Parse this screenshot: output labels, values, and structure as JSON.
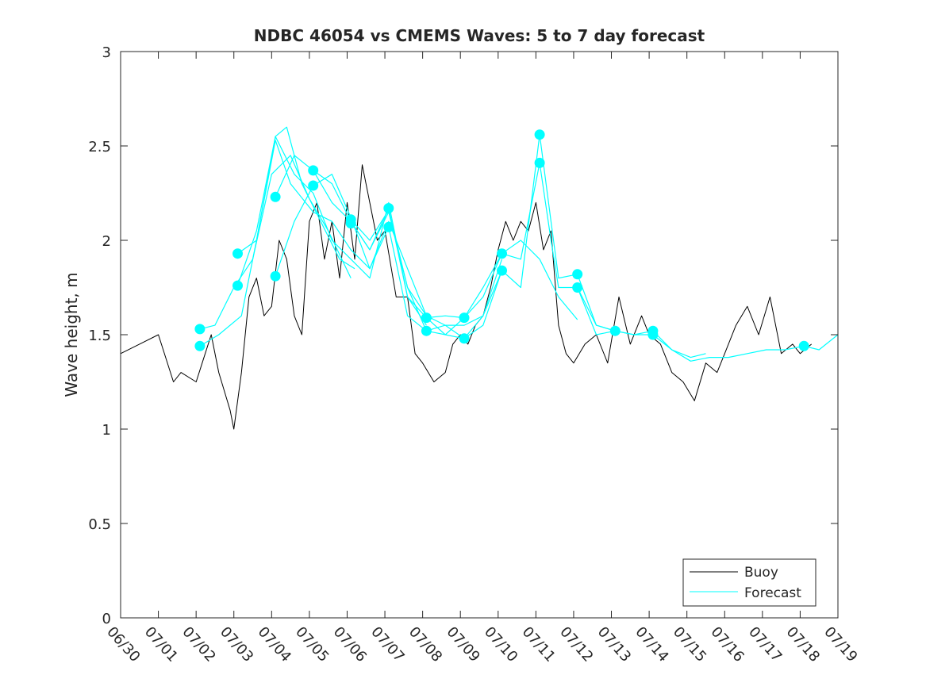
{
  "chart_data": {
    "type": "line",
    "title": "NDBC 46054 vs CMEMS Waves: 5 to 7 day forecast",
    "xlabel": "",
    "ylabel": "Wave height, m",
    "ylim": [
      0,
      3
    ],
    "yticks": [
      0,
      0.5,
      1,
      1.5,
      2,
      2.5,
      3
    ],
    "ytick_labels": [
      "0",
      "0.5",
      "1",
      "1.5",
      "2",
      "2.5",
      "3"
    ],
    "xlim": [
      "06/30",
      "07/19"
    ],
    "xticks": [
      "06/30",
      "07/01",
      "07/02",
      "07/03",
      "07/04",
      "07/05",
      "07/06",
      "07/07",
      "07/08",
      "07/09",
      "07/10",
      "07/11",
      "07/12",
      "07/13",
      "07/14",
      "07/15",
      "07/16",
      "07/17",
      "07/18",
      "07/19"
    ],
    "grid": false,
    "legend": {
      "position": "bottom-right",
      "entries": [
        "Buoy",
        "Forecast"
      ]
    },
    "colors": {
      "buoy": "#000000",
      "forecast": "#00ffff"
    },
    "series": [
      {
        "name": "Buoy",
        "x": [
          0,
          0.5,
          1,
          1.4,
          1.6,
          2,
          2.4,
          2.6,
          2.9,
          3,
          3.2,
          3.4,
          3.6,
          3.8,
          4,
          4.2,
          4.4,
          4.6,
          4.8,
          5,
          5.2,
          5.4,
          5.6,
          5.8,
          6,
          6.2,
          6.4,
          6.6,
          6.8,
          7,
          7.3,
          7.6,
          7.8,
          8,
          8.3,
          8.6,
          8.8,
          9,
          9.2,
          9.4,
          9.6,
          9.8,
          10,
          10.2,
          10.4,
          10.6,
          10.8,
          11,
          11.2,
          11.4,
          11.6,
          11.8,
          12,
          12.3,
          12.6,
          12.9,
          13.2,
          13.5,
          13.8,
          14,
          14.3,
          14.6,
          14.9,
          15.2,
          15.5,
          15.8,
          16,
          16.3,
          16.6,
          16.9,
          17.2,
          17.5,
          17.8,
          18,
          18.3
        ],
        "values": [
          1.4,
          1.45,
          1.5,
          1.25,
          1.3,
          1.25,
          1.5,
          1.3,
          1.1,
          1.0,
          1.3,
          1.7,
          1.8,
          1.6,
          1.65,
          2.0,
          1.9,
          1.6,
          1.5,
          2.1,
          2.2,
          1.9,
          2.1,
          1.8,
          2.2,
          1.9,
          2.4,
          2.2,
          2.0,
          2.05,
          1.7,
          1.7,
          1.4,
          1.35,
          1.25,
          1.3,
          1.45,
          1.5,
          1.45,
          1.55,
          1.6,
          1.75,
          1.95,
          2.1,
          2.0,
          2.1,
          2.05,
          2.2,
          1.95,
          2.05,
          1.55,
          1.4,
          1.35,
          1.45,
          1.5,
          1.35,
          1.7,
          1.45,
          1.6,
          1.5,
          1.45,
          1.3,
          1.25,
          1.15,
          1.35,
          1.3,
          1.4,
          1.55,
          1.65,
          1.5,
          1.7,
          1.4,
          1.45,
          1.4,
          1.45
        ]
      },
      {
        "name": "Forecast",
        "x": [
          2.1,
          2.5,
          3.0,
          3.5,
          4.0,
          4.5,
          5.0,
          5.5,
          6.1
        ],
        "values": [
          1.53,
          1.55,
          1.75,
          1.9,
          2.35,
          2.45,
          2.22,
          2.05,
          1.8
        ]
      },
      {
        "name": "Forecast",
        "x": [
          2.1,
          2.6,
          3.2,
          3.6,
          4.1,
          4.4,
          4.8,
          5.3,
          5.8,
          6.2
        ],
        "values": [
          1.44,
          1.5,
          1.6,
          2.0,
          2.55,
          2.6,
          2.3,
          2.1,
          1.9,
          1.85
        ]
      },
      {
        "name": "Forecast",
        "x": [
          3.1,
          3.6,
          4.1,
          4.5,
          5.1,
          5.6,
          6.1,
          6.6,
          7.1,
          7.5,
          8.1
        ],
        "values": [
          1.93,
          2.0,
          2.53,
          2.3,
          2.15,
          2.1,
          1.95,
          1.85,
          2.1,
          1.9,
          1.6
        ]
      },
      {
        "name": "Forecast",
        "x": [
          3.1,
          3.6,
          4.1,
          4.6,
          5.1,
          5.6,
          6.1,
          6.6,
          7.1,
          7.6,
          8.1
        ],
        "values": [
          1.76,
          2.05,
          2.55,
          2.35,
          2.25,
          2.0,
          1.9,
          1.8,
          2.2,
          1.7,
          1.55
        ]
      },
      {
        "name": "Forecast",
        "x": [
          4.1,
          4.6,
          5.1,
          5.6,
          6.1,
          6.6,
          7.1,
          7.6,
          8.1,
          8.6,
          9.1,
          9.6,
          10.1
        ],
        "values": [
          2.23,
          2.45,
          2.37,
          2.2,
          2.1,
          1.95,
          2.15,
          1.75,
          1.6,
          1.55,
          1.55,
          1.6,
          1.9
        ]
      },
      {
        "name": "Forecast",
        "x": [
          4.1,
          4.6,
          5.1,
          5.6,
          6.1,
          6.6,
          7.1,
          7.6,
          8.1,
          8.6,
          9.1,
          9.6,
          10.1
        ],
        "values": [
          1.81,
          2.1,
          2.29,
          2.35,
          2.12,
          1.85,
          2.07,
          1.6,
          1.52,
          1.5,
          1.48,
          1.55,
          1.84
        ]
      },
      {
        "name": "Forecast",
        "x": [
          5.1,
          5.6,
          6.1,
          6.6,
          7.1,
          7.6,
          8.1,
          8.6,
          9.1,
          9.6,
          10.1,
          10.6,
          11.1,
          11.6,
          12.1
        ],
        "values": [
          2.37,
          2.3,
          2.1,
          1.95,
          2.17,
          1.7,
          1.59,
          1.6,
          1.59,
          1.7,
          1.93,
          2.0,
          1.9,
          1.7,
          1.58
        ]
      },
      {
        "name": "Forecast",
        "x": [
          6.1,
          6.6,
          7.1,
          7.6,
          8.1,
          8.6,
          9.1,
          9.6,
          10.1,
          10.6,
          11.1,
          11.4,
          11.6,
          12.1,
          12.6,
          13.1
        ],
        "values": [
          2.11,
          2.0,
          2.16,
          1.75,
          1.52,
          1.55,
          1.48,
          1.6,
          1.84,
          1.75,
          2.56,
          2.1,
          1.8,
          1.82,
          1.55,
          1.52
        ]
      },
      {
        "name": "Forecast",
        "x": [
          8.1,
          8.6,
          9.1,
          9.6,
          10.1,
          10.6,
          11.1,
          11.4,
          11.6,
          12.1,
          12.6,
          13.1,
          13.6,
          14.1,
          14.6,
          15.1,
          15.5
        ],
        "values": [
          1.59,
          1.5,
          1.59,
          1.75,
          1.93,
          1.9,
          2.41,
          2.0,
          1.75,
          1.75,
          1.5,
          1.52,
          1.5,
          1.52,
          1.42,
          1.38,
          1.4
        ]
      },
      {
        "name": "Forecast",
        "x": [
          12.1,
          12.6,
          13.1,
          13.6,
          14.1,
          14.6,
          15.1,
          15.6,
          16.1,
          16.6,
          17.1,
          17.6,
          18.1,
          18.5,
          19.0
        ],
        "values": [
          1.75,
          1.55,
          1.52,
          1.5,
          1.5,
          1.42,
          1.36,
          1.38,
          1.38,
          1.4,
          1.42,
          1.42,
          1.44,
          1.42,
          1.5
        ]
      }
    ],
    "markers": {
      "x": [
        2.1,
        2.1,
        3.1,
        3.1,
        4.1,
        4.1,
        5.1,
        5.1,
        6.1,
        6.1,
        7.1,
        7.1,
        8.1,
        8.1,
        9.1,
        9.1,
        10.1,
        10.1,
        11.1,
        11.1,
        12.1,
        12.1,
        13.1,
        14.1,
        14.1,
        18.1
      ],
      "values": [
        1.53,
        1.44,
        1.93,
        1.76,
        2.23,
        1.81,
        2.37,
        2.29,
        2.11,
        2.09,
        2.17,
        2.07,
        1.59,
        1.52,
        1.59,
        1.48,
        1.93,
        1.84,
        2.56,
        2.41,
        1.82,
        1.75,
        1.52,
        1.52,
        1.5,
        1.44
      ]
    }
  }
}
